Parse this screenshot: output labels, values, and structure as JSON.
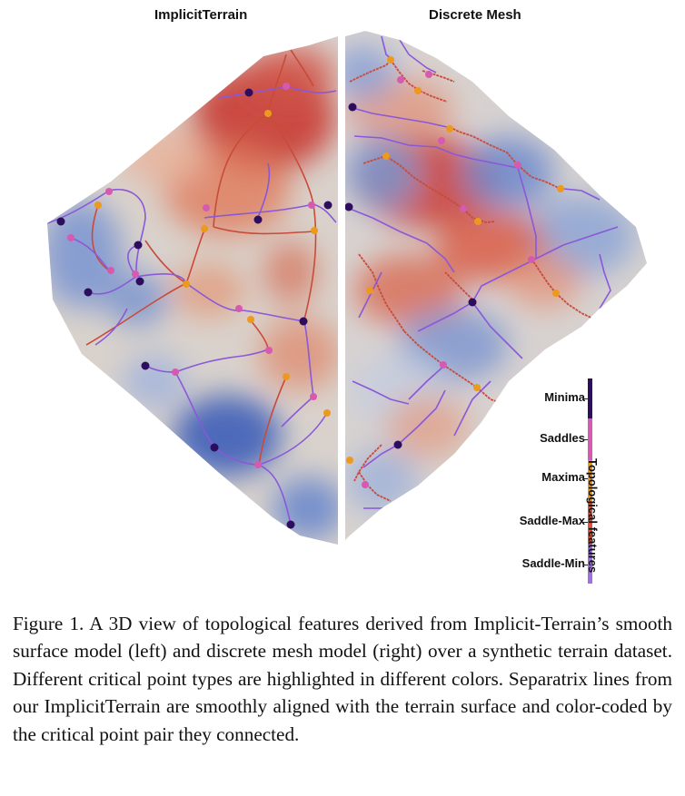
{
  "panels": {
    "left_title": "ImplicitTerrain",
    "right_title": "Discrete Mesh"
  },
  "legend": {
    "axis_label": "Topological features",
    "items": [
      {
        "label": "Minima",
        "color": "#2c0d5e"
      },
      {
        "label": "Saddles",
        "color": "#d65ab0"
      },
      {
        "label": "Maxima",
        "color": "#eb9a1e"
      },
      {
        "label": "Saddle-Max",
        "color": "#d9533d"
      },
      {
        "label": "Saddle-Min",
        "color": "#a070e0"
      }
    ]
  },
  "colors": {
    "terrain_low": "#5d7ec9",
    "terrain_mid": "#dcdde0",
    "terrain_high": "#c8342c",
    "divider": "#ffffff"
  },
  "caption": "Figure 1. A 3D view of topological features derived from Implicit-Terrain’s smooth surface model (left) and discrete mesh model (right) over a synthetic terrain dataset.  Different critical point types are highlighted in different colors. Separatrix lines from our ImplicitTerrain are smoothly aligned with the terrain surface and color-coded by the critical point pair they connected."
}
